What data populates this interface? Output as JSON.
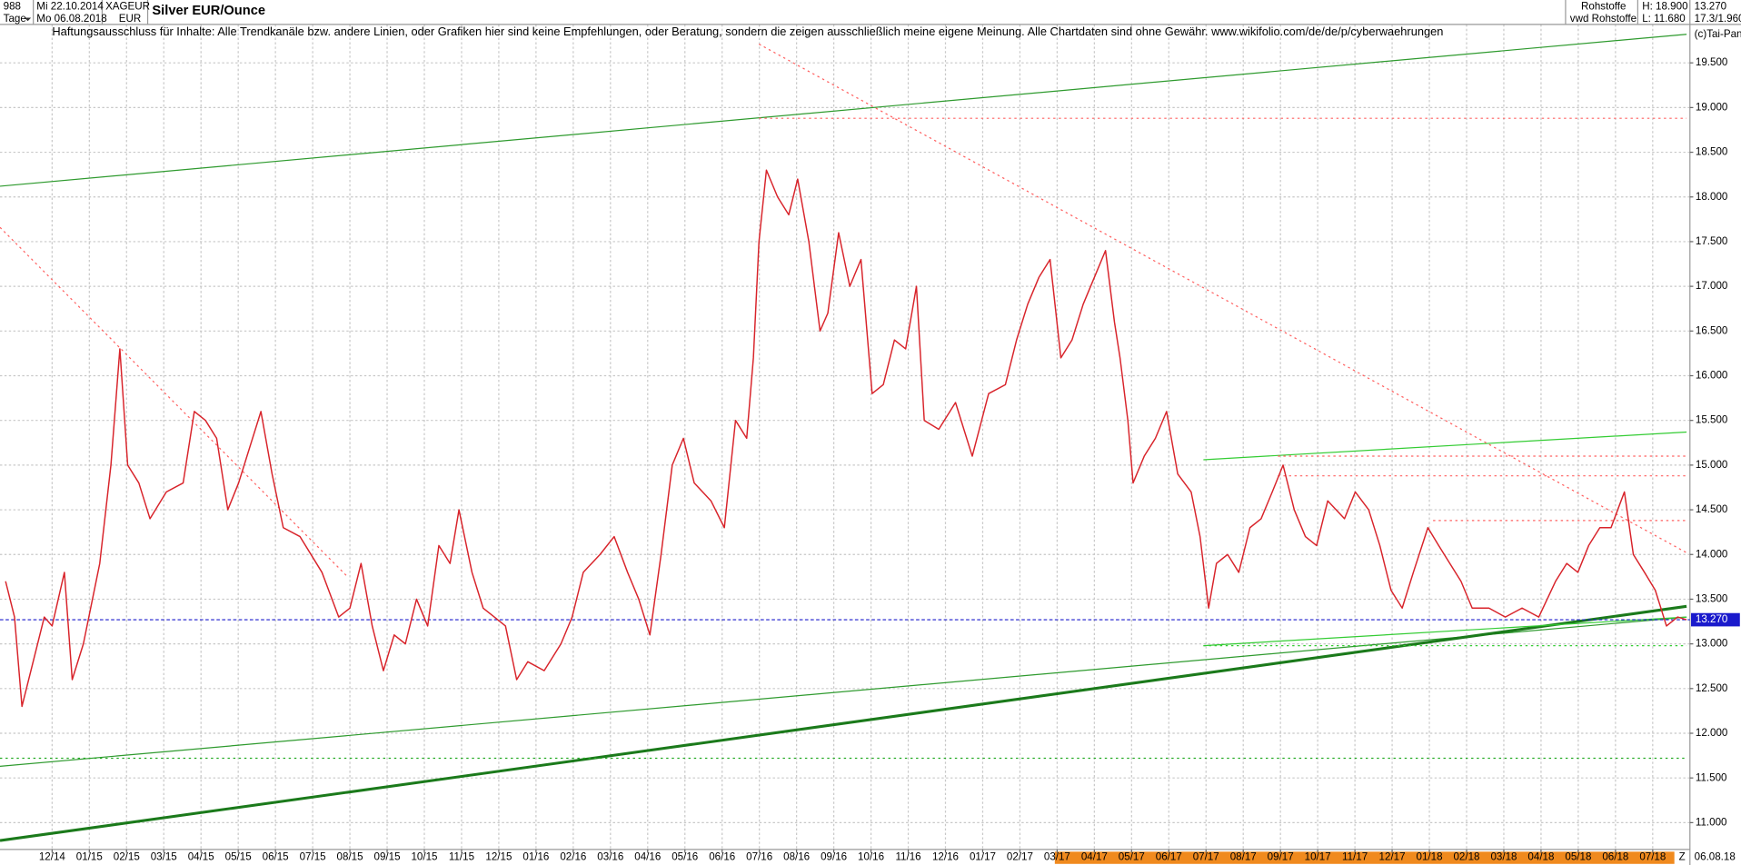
{
  "chart_data": {
    "type": "line",
    "title": "Silver EUR/Ounce",
    "subtitle": "Haftungsausschluss für Inhalte: Alle Trendkanäle bzw. andere Linien, oder Grafiken hier sind keine Empfehlungen, oder Beratung, sondern die zeigen ausschließlich meine eigene Meinung. Alle Chartdaten sind ohne Gewähr.  www.wikifolio.com/de/de/p/cyberwaehrungen",
    "info": {
      "count": "988",
      "period": "Tage",
      "from": "Mi 22.10.2014",
      "to": "Mo 06.08.2018",
      "symbol": "XAGEUR",
      "currency": "EUR",
      "group": "Rohstoffe",
      "source": "vwd Rohstoffe",
      "high": "H: 18.900",
      "low": "L: 11.680",
      "ratio": "17.3/1.960",
      "copyright": "(c)Tai-Pan",
      "end_marker": "Z",
      "end_date": "06.08.18"
    },
    "current": {
      "value": 13.27,
      "label": "13.270"
    },
    "color": "#d8232a",
    "x": [
      -1.25,
      -1.01,
      -0.81,
      -0.51,
      -0.21,
      0,
      0.33,
      0.54,
      0.84,
      1.28,
      1.58,
      1.82,
      2.03,
      2.33,
      2.63,
      3.07,
      3.52,
      3.82,
      4.12,
      4.42,
      4.72,
      5.01,
      5.31,
      5.61,
      5.91,
      6.21,
      6.66,
      7.25,
      7.7,
      8.0,
      8.3,
      8.6,
      8.9,
      9.19,
      9.49,
      9.79,
      10.09,
      10.39,
      10.69,
      10.93,
      11.28,
      11.58,
      11.88,
      12.18,
      12.48,
      12.78,
      13.22,
      13.67,
      13.97,
      14.27,
      14.72,
      15.1,
      15.46,
      15.76,
      16.06,
      16.36,
      16.66,
      16.96,
      17.25,
      17.7,
      18.06,
      18.36,
      18.66,
      18.84,
      18.99,
      19.19,
      19.49,
      19.79,
      20.03,
      20.33,
      20.63,
      20.84,
      21.13,
      21.43,
      21.73,
      22.03,
      22.33,
      22.63,
      22.93,
      23.22,
      23.43,
      23.82,
      24.27,
      24.72,
      25.16,
      25.61,
      25.91,
      26.21,
      26.51,
      26.81,
      27.1,
      27.4,
      27.7,
      28.0,
      28.3,
      28.54,
      28.69,
      28.9,
      29.04,
      29.34,
      29.64,
      29.94,
      30.24,
      30.6,
      30.84,
      31.07,
      31.28,
      31.58,
      31.88,
      32.18,
      32.48,
      32.78,
      33.07,
      33.37,
      33.67,
      33.97,
      34.27,
      34.72,
      35.01,
      35.37,
      35.67,
      35.97,
      36.27,
      36.57,
      36.96,
      37.25,
      37.55,
      37.85,
      38.15,
      38.6,
      39.04,
      39.49,
      39.94,
      40.39,
      40.69,
      40.99,
      41.28,
      41.58,
      41.88,
      42.24,
      42.48,
      42.78,
      43.07,
      43.37,
      43.67,
      43.91
    ],
    "values": [
      13.7,
      13.3,
      12.3,
      12.8,
      13.3,
      13.2,
      13.8,
      12.6,
      13.0,
      13.9,
      15.0,
      16.3,
      15.0,
      14.8,
      14.4,
      14.7,
      14.8,
      15.6,
      15.5,
      15.3,
      14.5,
      14.8,
      15.2,
      15.6,
      14.9,
      14.3,
      14.2,
      13.8,
      13.3,
      13.4,
      13.9,
      13.2,
      12.7,
      13.1,
      13.0,
      13.5,
      13.2,
      14.1,
      13.9,
      14.5,
      13.8,
      13.4,
      13.3,
      13.2,
      12.6,
      12.8,
      12.7,
      13.0,
      13.3,
      13.8,
      14.0,
      14.2,
      13.8,
      13.5,
      13.1,
      14.0,
      15.0,
      15.3,
      14.8,
      14.6,
      14.3,
      15.5,
      15.3,
      16.2,
      17.5,
      18.3,
      18.0,
      17.8,
      18.2,
      17.5,
      16.5,
      16.7,
      17.6,
      17.0,
      17.3,
      15.8,
      15.9,
      16.4,
      16.3,
      17.0,
      15.5,
      15.4,
      15.7,
      15.1,
      15.8,
      15.9,
      16.4,
      16.8,
      17.1,
      17.3,
      16.2,
      16.4,
      16.8,
      17.1,
      17.4,
      16.6,
      16.2,
      15.5,
      14.8,
      15.1,
      15.3,
      15.6,
      14.9,
      14.7,
      14.2,
      13.4,
      13.9,
      14.0,
      13.8,
      14.3,
      14.4,
      14.7,
      15.0,
      14.5,
      14.2,
      14.1,
      14.6,
      14.4,
      14.7,
      14.5,
      14.1,
      13.6,
      13.4,
      13.8,
      14.3,
      14.1,
      13.9,
      13.7,
      13.4,
      13.4,
      13.3,
      13.4,
      13.3,
      13.7,
      13.9,
      13.8,
      14.1,
      14.3,
      14.3,
      14.7,
      14.0,
      13.8,
      13.6,
      13.2,
      13.3,
      13.27
    ],
    "xlim": [
      -1.4,
      44.0
    ],
    "ylim": [
      10.7,
      19.93
    ],
    "xticks": [
      {
        "value": 0,
        "label": "12/14"
      },
      {
        "value": 1,
        "label": "01/15"
      },
      {
        "value": 2,
        "label": "02/15"
      },
      {
        "value": 3,
        "label": "03/15"
      },
      {
        "value": 4,
        "label": "04/15"
      },
      {
        "value": 5,
        "label": "05/15"
      },
      {
        "value": 6,
        "label": "06/15"
      },
      {
        "value": 7,
        "label": "07/15"
      },
      {
        "value": 8,
        "label": "08/15"
      },
      {
        "value": 9,
        "label": "09/15"
      },
      {
        "value": 10,
        "label": "10/15"
      },
      {
        "value": 11,
        "label": "11/15"
      },
      {
        "value": 12,
        "label": "12/15"
      },
      {
        "value": 13,
        "label": "01/16"
      },
      {
        "value": 14,
        "label": "02/16"
      },
      {
        "value": 15,
        "label": "03/16"
      },
      {
        "value": 16,
        "label": "04/16"
      },
      {
        "value": 17,
        "label": "05/16"
      },
      {
        "value": 18,
        "label": "06/16"
      },
      {
        "value": 19,
        "label": "07/16"
      },
      {
        "value": 20,
        "label": "08/16"
      },
      {
        "value": 21,
        "label": "09/16"
      },
      {
        "value": 22,
        "label": "10/16"
      },
      {
        "value": 23,
        "label": "11/16"
      },
      {
        "value": 24,
        "label": "12/16"
      },
      {
        "value": 25,
        "label": "01/17"
      },
      {
        "value": 26,
        "label": "02/17"
      },
      {
        "value": 27,
        "label": "03/17"
      },
      {
        "value": 28,
        "label": "04/17"
      },
      {
        "value": 29,
        "label": "05/17"
      },
      {
        "value": 30,
        "label": "06/17"
      },
      {
        "value": 31,
        "label": "07/17"
      },
      {
        "value": 32,
        "label": "08/17"
      },
      {
        "value": 33,
        "label": "09/17"
      },
      {
        "value": 34,
        "label": "10/17"
      },
      {
        "value": 35,
        "label": "11/17"
      },
      {
        "value": 36,
        "label": "12/17"
      },
      {
        "value": 37,
        "label": "01/18"
      },
      {
        "value": 38,
        "label": "02/18"
      },
      {
        "value": 39,
        "label": "03/18"
      },
      {
        "value": 40,
        "label": "04/18"
      },
      {
        "value": 41,
        "label": "05/18"
      },
      {
        "value": 42,
        "label": "06/18"
      },
      {
        "value": 43,
        "label": "07/18"
      }
    ],
    "yticks": [
      {
        "value": 11,
        "label": "11.000"
      },
      {
        "value": 11.5,
        "label": "11.500"
      },
      {
        "value": 12,
        "label": "12.000"
      },
      {
        "value": 12.5,
        "label": "12.500"
      },
      {
        "value": 13,
        "label": "13.000"
      },
      {
        "value": 13.5,
        "label": "13.500"
      },
      {
        "value": 14,
        "label": "14.000"
      },
      {
        "value": 14.5,
        "label": "14.500"
      },
      {
        "value": 15,
        "label": "15.000"
      },
      {
        "value": 15.5,
        "label": "15.500"
      },
      {
        "value": 16,
        "label": "16.000"
      },
      {
        "value": 16.5,
        "label": "16.500"
      },
      {
        "value": 17,
        "label": "17.000"
      },
      {
        "value": 17.5,
        "label": "17.500"
      },
      {
        "value": 18,
        "label": "18.000"
      },
      {
        "value": 18.5,
        "label": "18.500"
      },
      {
        "value": 19,
        "label": "19.000"
      },
      {
        "value": 19.5,
        "label": "19.500"
      }
    ],
    "grid": true,
    "trendlines": [
      {
        "x": [
          -1.4,
          43.91
        ],
        "y": [
          18.12,
          19.82
        ],
        "color": "#2e9a2e",
        "width": 1,
        "dash": "solid"
      },
      {
        "x": [
          -1.4,
          43.91
        ],
        "y": [
          11.63,
          13.3
        ],
        "color": "#2e9a2e",
        "width": 1,
        "dash": "solid"
      },
      {
        "x": [
          -1.4,
          43.91
        ],
        "y": [
          10.8,
          13.42
        ],
        "color": "#1b7a1b",
        "width": 2.5,
        "dash": "solid"
      },
      {
        "x": [
          30.93,
          43.91
        ],
        "y": [
          12.98,
          13.3
        ],
        "color": "#33cc33",
        "width": 1,
        "dash": "solid"
      },
      {
        "x": [
          30.93,
          43.91
        ],
        "y": [
          15.06,
          15.37
        ],
        "color": "#33cc33",
        "width": 1,
        "dash": "solid"
      },
      {
        "x": [
          -1.4,
          43.91
        ],
        "y": [
          11.72,
          11.72
        ],
        "color": "#22aa22",
        "width": 1,
        "dash": "dotted"
      },
      {
        "x": [
          30.93,
          43.91
        ],
        "y": [
          12.98,
          12.98
        ],
        "color": "#33cc33",
        "width": 1,
        "dash": "dotted"
      },
      {
        "x": [
          -1.4,
          7.94
        ],
        "y": [
          17.66,
          13.75
        ],
        "color": "#ff6060",
        "width": 1,
        "dash": "dotted"
      },
      {
        "x": [
          18.99,
          43.91
        ],
        "y": [
          19.71,
          14.02
        ],
        "color": "#ff6060",
        "width": 1,
        "dash": "dotted"
      },
      {
        "x": [
          18.99,
          43.91
        ],
        "y": [
          18.88,
          18.88
        ],
        "color": "#ff6060",
        "width": 1,
        "dash": "dotted"
      },
      {
        "x": [
          32.93,
          43.91
        ],
        "y": [
          15.1,
          15.1
        ],
        "color": "#ff6060",
        "width": 1,
        "dash": "dotted"
      },
      {
        "x": [
          32.93,
          43.91
        ],
        "y": [
          14.88,
          14.88
        ],
        "color": "#ff6060",
        "width": 1,
        "dash": "dotted"
      },
      {
        "x": [
          37.1,
          43.91
        ],
        "y": [
          14.38,
          14.38
        ],
        "color": "#ff6060",
        "width": 1,
        "dash": "dotted"
      }
    ]
  }
}
